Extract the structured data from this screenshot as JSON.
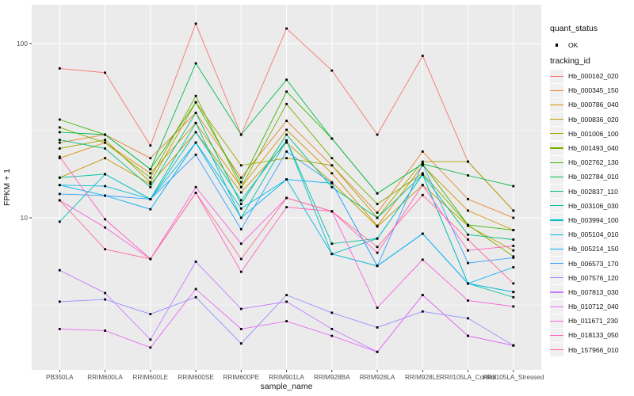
{
  "chart_data": {
    "type": "line",
    "title": "",
    "xlabel": "sample_name",
    "ylabel": "FPKM + 1",
    "y_scale": "log10",
    "y_ticks": [
      "100",
      "10"
    ],
    "y_tick_values": [
      100,
      10
    ],
    "y_minor_values": [
      31.62,
      3.162
    ],
    "grid": "on",
    "panel_bg": "#EBEBEB",
    "grid_color": "#FFFFFF",
    "point_color": "#000000",
    "legend_position": "right",
    "categories": [
      "PB350LA",
      "RRIM600LA",
      "RRIM600LE",
      "RRIM600SE",
      "RRIM600PE",
      "RRIM901LA",
      "RRIM928BA",
      "RRIM928LA",
      "RRIM928LE",
      "RRII105LA_Control",
      "RRII105LA_Stressed"
    ],
    "series": [
      {
        "name": "Hb_000162_020",
        "color": "#F8766D",
        "values": [
          72,
          68,
          26,
          130,
          30,
          122,
          70,
          30,
          85,
          21,
          11
        ]
      },
      {
        "name": "Hb_000345_150",
        "color": "#EA8331",
        "values": [
          27,
          30,
          22,
          40,
          17,
          36,
          20,
          10.7,
          24,
          12.8,
          10
        ]
      },
      {
        "name": "Hb_000786_040",
        "color": "#D89000",
        "values": [
          22,
          27,
          18,
          35,
          15,
          32,
          18,
          9,
          20,
          11,
          8.5
        ]
      },
      {
        "name": "Hb_000836_020",
        "color": "#C09B00",
        "values": [
          17,
          22,
          15.6,
          31,
          14,
          27,
          16,
          8.9,
          15.4,
          9,
          6.5
        ]
      },
      {
        "name": "Hb_001006_100",
        "color": "#A3A500",
        "values": [
          25,
          28,
          16,
          46,
          20,
          22,
          20,
          10,
          21,
          21,
          11
        ]
      },
      {
        "name": "Hb_001493_040",
        "color": "#7CAE00",
        "values": [
          33,
          27,
          17,
          50,
          15,
          45,
          22,
          12,
          18,
          9.1,
          6
        ]
      },
      {
        "name": "Hb_002762_130",
        "color": "#39B600",
        "values": [
          36.6,
          30,
          19,
          46,
          16,
          53,
          28.5,
          13.8,
          20.4,
          9.1,
          8.5
        ]
      },
      {
        "name": "Hb_002784_010",
        "color": "#00BB4E",
        "values": [
          31,
          30,
          19,
          77,
          30,
          62,
          28.5,
          13.8,
          20.4,
          17.5,
          15.2
        ]
      },
      {
        "name": "Hb_002837_110",
        "color": "#00BF7D",
        "values": [
          28,
          25,
          15,
          40,
          12,
          30,
          15,
          10,
          17.7,
          8,
          7.5
        ]
      },
      {
        "name": "Hb_003106_030",
        "color": "#00C1A3",
        "values": [
          17,
          17.8,
          12.8,
          35,
          10,
          27.8,
          7.1,
          7.6,
          17.7,
          4.2,
          3.5
        ]
      },
      {
        "name": "Hb_003994_100",
        "color": "#00BFC4",
        "values": [
          9.5,
          17.8,
          12.8,
          31,
          12.6,
          27.8,
          6.2,
          7.6,
          17.7,
          4.2,
          3.75
        ]
      },
      {
        "name": "Hb_005104_010",
        "color": "#00BAE0",
        "values": [
          15.4,
          15.2,
          12.8,
          27,
          11.3,
          16.6,
          6.2,
          5.3,
          8.1,
          4.2,
          3.75
        ]
      },
      {
        "name": "Hb_005214_150",
        "color": "#00B0F6",
        "values": [
          15.4,
          13.4,
          11.2,
          27,
          10,
          16.6,
          15.8,
          5.3,
          8.1,
          4.2,
          5.2
        ]
      },
      {
        "name": "Hb_006573_170",
        "color": "#35A2FF",
        "values": [
          13.7,
          13.4,
          12.8,
          23,
          8.6,
          24,
          15.8,
          5.3,
          20.4,
          5.5,
          5.9
        ]
      },
      {
        "name": "Hb_007576_120",
        "color": "#9590FF",
        "values": [
          3.3,
          3.4,
          2.8,
          3.5,
          1.9,
          3.6,
          2.85,
          2.35,
          2.9,
          2.65,
          1.85
        ]
      },
      {
        "name": "Hb_007813_030",
        "color": "#C77CFF",
        "values": [
          5,
          3.7,
          2,
          5.6,
          3,
          3.3,
          2.3,
          1.7,
          3.6,
          2.1,
          1.85
        ]
      },
      {
        "name": "Hb_010712_040",
        "color": "#E76BF3",
        "values": [
          2.3,
          2.25,
          1.8,
          3.9,
          2.3,
          2.55,
          2.1,
          1.7,
          3.6,
          2.1,
          1.85
        ]
      },
      {
        "name": "Hb_011671_230",
        "color": "#FA62DB",
        "values": [
          12.6,
          8.8,
          5.8,
          15,
          7.1,
          13,
          10.9,
          3.05,
          5.75,
          3.35,
          3.1
        ]
      },
      {
        "name": "Hb_018133_050",
        "color": "#FF62BC",
        "values": [
          22.4,
          9.8,
          5.8,
          13.9,
          4.9,
          11.5,
          10.9,
          6.3,
          15.4,
          6.5,
          6.9
        ]
      },
      {
        "name": "Hb_157966_010",
        "color": "#FF6A98",
        "values": [
          12.6,
          6.6,
          5.8,
          13.9,
          5.8,
          13,
          10.9,
          6.8,
          13.5,
          7.5,
          4.2
        ]
      }
    ]
  },
  "legend": {
    "quant_status": {
      "title": "quant_status",
      "items": [
        {
          "label": "OK"
        }
      ]
    },
    "tracking_id": {
      "title": "tracking_id"
    }
  }
}
